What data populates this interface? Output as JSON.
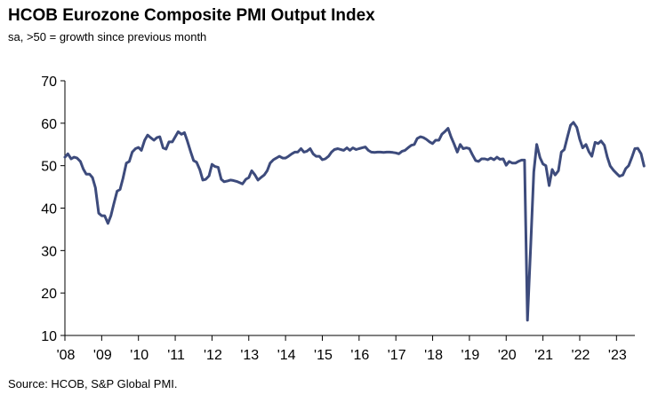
{
  "chart_data": {
    "type": "line",
    "title": "HCOB Eurozone Composite PMI Output Index",
    "subtitle": "sa, >50 = growth  since previous  month",
    "source": "Source: HCOB,  S&P Global  PMI.",
    "xlabel": "",
    "ylabel": "",
    "ylim": [
      10,
      70
    ],
    "xlim": [
      2008.0,
      2023.5
    ],
    "yticks": [
      10,
      20,
      30,
      40,
      50,
      60,
      70
    ],
    "ytick_labels": [
      "10",
      "20",
      "30",
      "40",
      "50",
      "60",
      "70"
    ],
    "xticks": [
      2008,
      2009,
      2010,
      2011,
      2012,
      2013,
      2014,
      2015,
      2016,
      2017,
      2018,
      2019,
      2020,
      2021,
      2022,
      2023
    ],
    "xtick_labels": [
      "'08",
      "'09",
      "'10",
      "'11",
      "'12",
      "'13",
      "'14",
      "'15",
      "'16",
      "'17",
      "'18",
      "'19",
      "'20",
      "'21",
      "'22",
      "'23"
    ],
    "grid": false,
    "line_color": "#3d4b7c",
    "series": [
      {
        "name": "Composite PMI Output Index",
        "points": [
          [
            2008.0,
            52.0
          ],
          [
            2008.08,
            52.8
          ],
          [
            2008.17,
            51.6
          ],
          [
            2008.25,
            52.0
          ],
          [
            2008.33,
            51.8
          ],
          [
            2008.42,
            51.0
          ],
          [
            2008.5,
            49.2
          ],
          [
            2008.58,
            48.0
          ],
          [
            2008.67,
            48.0
          ],
          [
            2008.75,
            47.2
          ],
          [
            2008.83,
            44.8
          ],
          [
            2008.92,
            38.8
          ],
          [
            2009.0,
            38.2
          ],
          [
            2009.08,
            38.2
          ],
          [
            2009.17,
            36.4
          ],
          [
            2009.25,
            38.2
          ],
          [
            2009.33,
            41.0
          ],
          [
            2009.42,
            44.0
          ],
          [
            2009.5,
            44.4
          ],
          [
            2009.58,
            47.0
          ],
          [
            2009.67,
            50.6
          ],
          [
            2009.75,
            51.0
          ],
          [
            2009.83,
            53.2
          ],
          [
            2009.92,
            54.0
          ],
          [
            2010.0,
            54.3
          ],
          [
            2010.08,
            53.6
          ],
          [
            2010.17,
            56.0
          ],
          [
            2010.25,
            57.2
          ],
          [
            2010.33,
            56.6
          ],
          [
            2010.42,
            56.0
          ],
          [
            2010.5,
            56.6
          ],
          [
            2010.58,
            56.8
          ],
          [
            2010.67,
            54.2
          ],
          [
            2010.75,
            53.9
          ],
          [
            2010.83,
            55.6
          ],
          [
            2010.92,
            55.6
          ],
          [
            2011.0,
            56.8
          ],
          [
            2011.08,
            58.0
          ],
          [
            2011.17,
            57.4
          ],
          [
            2011.25,
            57.8
          ],
          [
            2011.33,
            55.8
          ],
          [
            2011.42,
            53.3
          ],
          [
            2011.5,
            51.2
          ],
          [
            2011.58,
            50.8
          ],
          [
            2011.67,
            49.0
          ],
          [
            2011.75,
            46.6
          ],
          [
            2011.83,
            46.8
          ],
          [
            2011.92,
            47.6
          ],
          [
            2012.0,
            50.3
          ],
          [
            2012.08,
            49.8
          ],
          [
            2012.17,
            49.6
          ],
          [
            2012.25,
            46.8
          ],
          [
            2012.33,
            46.2
          ],
          [
            2012.42,
            46.4
          ],
          [
            2012.5,
            46.6
          ],
          [
            2012.58,
            46.5
          ],
          [
            2012.67,
            46.3
          ],
          [
            2012.75,
            46.0
          ],
          [
            2012.83,
            45.7
          ],
          [
            2012.92,
            46.8
          ],
          [
            2013.0,
            47.2
          ],
          [
            2013.08,
            48.8
          ],
          [
            2013.17,
            47.8
          ],
          [
            2013.25,
            46.6
          ],
          [
            2013.33,
            47.2
          ],
          [
            2013.42,
            47.8
          ],
          [
            2013.5,
            48.8
          ],
          [
            2013.58,
            50.6
          ],
          [
            2013.67,
            51.4
          ],
          [
            2013.75,
            51.8
          ],
          [
            2013.83,
            52.2
          ],
          [
            2013.92,
            51.8
          ],
          [
            2014.0,
            51.8
          ],
          [
            2014.08,
            52.2
          ],
          [
            2014.17,
            52.8
          ],
          [
            2014.25,
            53.2
          ],
          [
            2014.33,
            53.2
          ],
          [
            2014.42,
            54.0
          ],
          [
            2014.5,
            53.2
          ],
          [
            2014.58,
            53.4
          ],
          [
            2014.67,
            54.0
          ],
          [
            2014.75,
            52.8
          ],
          [
            2014.83,
            52.2
          ],
          [
            2014.92,
            52.2
          ],
          [
            2015.0,
            51.4
          ],
          [
            2015.08,
            51.6
          ],
          [
            2015.17,
            52.2
          ],
          [
            2015.25,
            53.2
          ],
          [
            2015.33,
            53.8
          ],
          [
            2015.42,
            54.0
          ],
          [
            2015.5,
            53.8
          ],
          [
            2015.58,
            53.6
          ],
          [
            2015.67,
            54.2
          ],
          [
            2015.75,
            53.6
          ],
          [
            2015.83,
            54.2
          ],
          [
            2015.92,
            53.8
          ],
          [
            2016.0,
            54.0
          ],
          [
            2016.08,
            54.2
          ],
          [
            2016.17,
            54.4
          ],
          [
            2016.25,
            53.6
          ],
          [
            2016.33,
            53.2
          ],
          [
            2016.42,
            53.1
          ],
          [
            2016.5,
            53.2
          ],
          [
            2016.58,
            53.2
          ],
          [
            2016.67,
            53.1
          ],
          [
            2016.75,
            53.2
          ],
          [
            2016.83,
            53.2
          ],
          [
            2016.92,
            53.1
          ],
          [
            2017.0,
            53.0
          ],
          [
            2017.08,
            52.8
          ],
          [
            2017.17,
            53.4
          ],
          [
            2017.25,
            53.6
          ],
          [
            2017.33,
            54.2
          ],
          [
            2017.42,
            54.8
          ],
          [
            2017.5,
            55.0
          ],
          [
            2017.58,
            56.4
          ],
          [
            2017.67,
            56.8
          ],
          [
            2017.75,
            56.6
          ],
          [
            2017.83,
            56.2
          ],
          [
            2017.92,
            55.6
          ],
          [
            2018.0,
            55.2
          ],
          [
            2018.08,
            56.0
          ],
          [
            2018.17,
            56.0
          ],
          [
            2018.25,
            57.4
          ],
          [
            2018.33,
            58.0
          ],
          [
            2018.42,
            58.8
          ],
          [
            2018.5,
            56.8
          ],
          [
            2018.58,
            55.2
          ],
          [
            2018.67,
            53.2
          ],
          [
            2018.75,
            55.0
          ],
          [
            2018.83,
            54.0
          ],
          [
            2018.92,
            54.2
          ],
          [
            2019.0,
            54.0
          ],
          [
            2019.08,
            52.6
          ],
          [
            2019.17,
            51.2
          ],
          [
            2019.25,
            51.0
          ],
          [
            2019.33,
            51.6
          ],
          [
            2019.42,
            51.6
          ],
          [
            2019.5,
            51.4
          ],
          [
            2019.58,
            51.8
          ],
          [
            2019.67,
            51.4
          ],
          [
            2019.75,
            52.0
          ],
          [
            2019.83,
            51.5
          ],
          [
            2019.92,
            51.6
          ],
          [
            2020.0,
            50.1
          ],
          [
            2020.08,
            51.0
          ],
          [
            2020.17,
            50.6
          ],
          [
            2020.25,
            50.6
          ],
          [
            2020.33,
            51.0
          ],
          [
            2020.42,
            51.3
          ],
          [
            2020.5,
            51.3
          ],
          [
            2020.58,
            13.6
          ],
          [
            2020.67,
            31.9
          ],
          [
            2020.75,
            48.5
          ],
          [
            2020.83,
            55.0
          ],
          [
            2020.92,
            51.9
          ],
          [
            2021.0,
            50.4
          ],
          [
            2021.08,
            50.0
          ],
          [
            2021.17,
            45.3
          ],
          [
            2021.25,
            49.1
          ],
          [
            2021.33,
            47.8
          ],
          [
            2021.42,
            48.8
          ],
          [
            2021.5,
            53.2
          ],
          [
            2021.58,
            53.8
          ],
          [
            2021.67,
            56.9
          ],
          [
            2021.75,
            59.5
          ],
          [
            2021.83,
            60.2
          ],
          [
            2021.92,
            59.0
          ],
          [
            2022.0,
            56.2
          ],
          [
            2022.08,
            54.2
          ],
          [
            2022.17,
            55.0
          ],
          [
            2022.25,
            53.3
          ],
          [
            2022.33,
            52.2
          ],
          [
            2022.42,
            55.5
          ],
          [
            2022.5,
            55.2
          ],
          [
            2022.58,
            55.8
          ],
          [
            2022.67,
            54.8
          ],
          [
            2022.75,
            52.0
          ],
          [
            2022.83,
            49.9
          ],
          [
            2022.92,
            48.9
          ],
          [
            2023.0,
            48.2
          ],
          [
            2023.08,
            47.5
          ],
          [
            2023.17,
            47.8
          ],
          [
            2023.25,
            49.3
          ],
          [
            2023.33,
            50.0
          ],
          [
            2023.42,
            52.0
          ],
          [
            2023.5,
            54.0
          ],
          [
            2023.58,
            54.1
          ],
          [
            2023.67,
            52.8
          ],
          [
            2023.75,
            49.9
          ]
        ]
      }
    ]
  }
}
